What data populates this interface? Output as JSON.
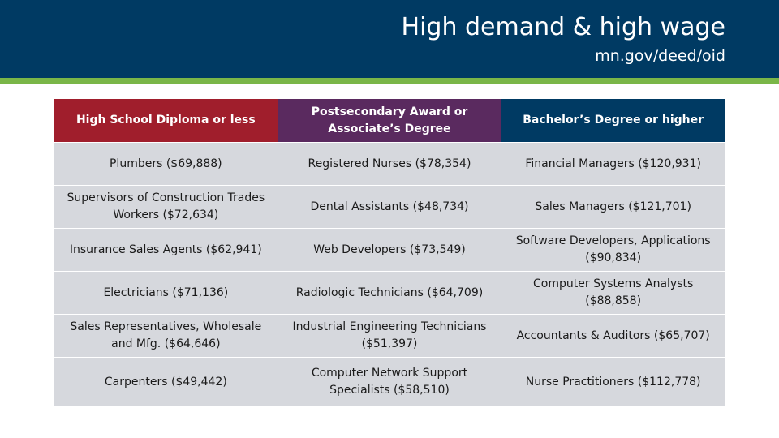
{
  "header": {
    "title": "High demand & high wage",
    "subtitle": "mn.gov/deed/oid"
  },
  "table": {
    "columns": [
      "High School Diploma or less",
      "Postsecondary Award or Associate’s Degree",
      "Bachelor’s Degree or higher"
    ],
    "rows": [
      [
        "Plumbers ($69,888)",
        "Registered Nurses ($78,354)",
        "Financial Managers ($120,931)"
      ],
      [
        "Supervisors of Construction Trades Workers ($72,634)",
        "Dental Assistants ($48,734)",
        "Sales Managers ($121,701)"
      ],
      [
        "Insurance Sales Agents ($62,941)",
        "Web Developers ($73,549)",
        "Software Developers, Applications ($90,834)"
      ],
      [
        "Electricians ($71,136)",
        "Radiologic Technicians ($64,709)",
        "Computer Systems Analysts ($88,858)"
      ],
      [
        "Sales Representatives, Wholesale and Mfg. ($64,646)",
        "Industrial Engineering Technicians ($51,397)",
        "Accountants & Auditors ($65,707)"
      ],
      [
        "Carpenters ($49,442)",
        "Computer Network Support Specialists ($58,510)",
        "Nurse Practitioners ($112,778)"
      ]
    ]
  },
  "colors": {
    "header_bg": "#003a63",
    "accent_bar": "#7ab648",
    "col_high_school": "#a01e2c",
    "col_postsecondary": "#5a2a5f",
    "col_bachelors": "#003a63",
    "cell_bg": "#d6d8dd"
  }
}
